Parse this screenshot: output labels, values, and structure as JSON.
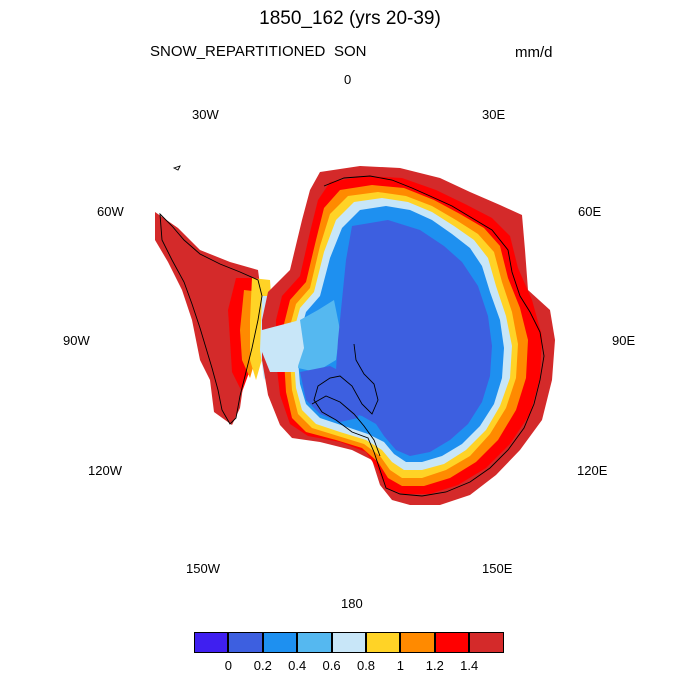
{
  "title": "1850_162 (yrs 20-39)",
  "variable": "SNOW_REPARTITIONED",
  "season": "SON",
  "units": "mm/d",
  "longitude_labels": {
    "lon_0": "0",
    "lon_30e": "30E",
    "lon_60e": "60E",
    "lon_90e": "90E",
    "lon_120e": "120E",
    "lon_150e": "150E",
    "lon_180": "180",
    "lon_150w": "150W",
    "lon_120w": "120W",
    "lon_90w": "90W",
    "lon_60w": "60W",
    "lon_30w": "30W"
  },
  "colorbar": {
    "labels": [
      "0",
      "0.2",
      "0.4",
      "0.6",
      "0.8",
      "1",
      "1.2",
      "1.4"
    ],
    "colors": [
      "#3f1ff0",
      "#3d5fe0",
      "#1e90f0",
      "#55b8f0",
      "#c8e6f8",
      "#ffd326",
      "#ff8a00",
      "#ff0000",
      "#d42a2a"
    ]
  },
  "map_colors": {
    "ocean": "#ffffff",
    "interior": "#3d5fe0",
    "coast": "#000000"
  }
}
